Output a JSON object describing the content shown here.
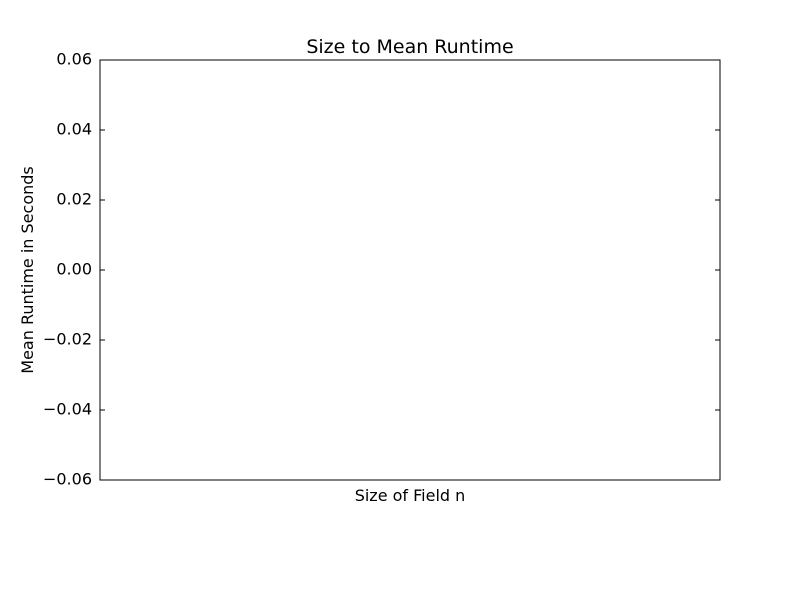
{
  "chart_data": {
    "type": "line",
    "title": "Size to Mean Runtime",
    "xlabel": "Size of Field n",
    "ylabel": "Mean Runtime in Seconds",
    "ylim": [
      -0.06,
      0.06
    ],
    "y_ticks": [
      {
        "value": 0.06,
        "label": "0.06"
      },
      {
        "value": 0.04,
        "label": "0.04"
      },
      {
        "value": 0.02,
        "label": "0.02"
      },
      {
        "value": 0.0,
        "label": "0.00"
      },
      {
        "value": -0.02,
        "label": "−0.02"
      },
      {
        "value": -0.04,
        "label": "−0.04"
      },
      {
        "value": -0.06,
        "label": "−0.06"
      }
    ],
    "series": [],
    "grid": false,
    "legend": "none"
  }
}
